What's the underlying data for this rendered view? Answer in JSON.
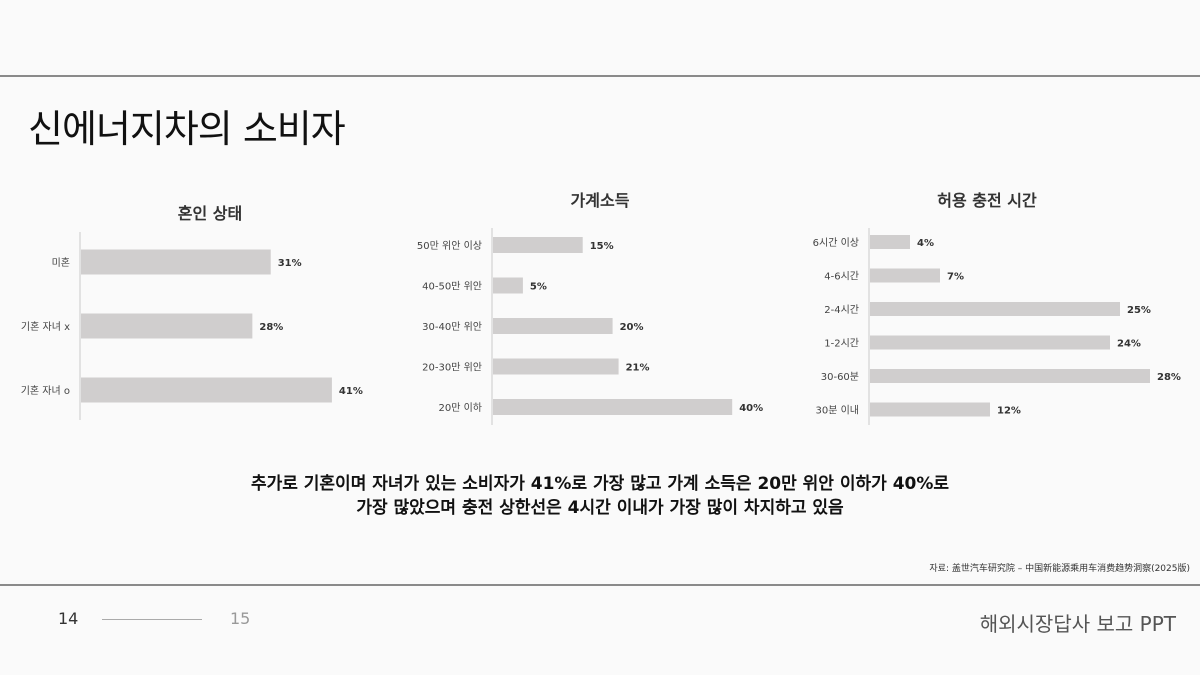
{
  "title": "신에너지차의 소비자",
  "chart_data": [
    {
      "type": "bar",
      "orientation": "horizontal",
      "title": "혼인 상태",
      "categories": [
        "미혼",
        "기혼 자녀 x",
        "기혼 자녀 o"
      ],
      "values": [
        31,
        28,
        41
      ],
      "data_labels": [
        "31%",
        "28%",
        "41%"
      ],
      "unit": "%",
      "bar_color": "#d0cece",
      "grid": false
    },
    {
      "type": "bar",
      "orientation": "horizontal",
      "title": "가계소득",
      "categories": [
        "50만 위안 이상",
        "40-50만 위안",
        "30-40만 위안",
        "20-30만 위안",
        "20만 이하"
      ],
      "values": [
        15,
        5,
        20,
        21,
        40
      ],
      "data_labels": [
        "15%",
        "5%",
        "20%",
        "21%",
        "40%"
      ],
      "unit": "%",
      "bar_color": "#d0cece",
      "grid": false
    },
    {
      "type": "bar",
      "orientation": "horizontal",
      "title": "허용 충전 시간",
      "categories": [
        "6시간 이상",
        "4-6시간",
        "2-4시간",
        "1-2시간",
        "30-60분",
        "30분 이내"
      ],
      "values": [
        4,
        7,
        25,
        24,
        28,
        12
      ],
      "data_labels": [
        "4%",
        "7%",
        "25%",
        "24%",
        "28%",
        "12%"
      ],
      "unit": "%",
      "bar_color": "#d0cece",
      "grid": false
    }
  ],
  "summary": {
    "line1": "추가로 기혼이며 자녀가 있는 소비자가 41%로 가장 많고 가계 소득은 20만 위안 이하가 40%로",
    "line2": "가장 많았으며 충전 상한선은 4시간 이내가 가장 많이 차지하고 있음"
  },
  "source": "자료: 盖世汽车研究院 – 中国新能源乘用车消费趋势洞察(2025版)",
  "footer": {
    "page_current": "14",
    "page_next": "15",
    "title": "해외시장답사 보고 PPT"
  }
}
